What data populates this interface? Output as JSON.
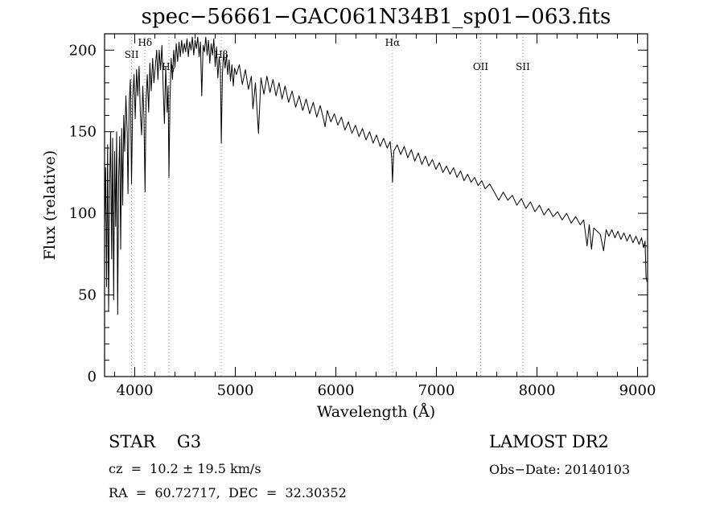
{
  "annotations": {
    "classification": "STAR    G3",
    "survey": "LAMOST DR2",
    "cz_line": "cz  =  10.2 ± 19.5 km/s",
    "obs_date": "Obs−Date: 20140103",
    "radec_line": "RA  =  60.72717,  DEC  =  32.30352"
  },
  "chart_data": {
    "type": "line",
    "title": "spec−56661−GAC061N34B1_sp01−063.fits",
    "xlabel": "Wavelength (Å)",
    "ylabel": "Flux (relative)",
    "xlim": [
      3700,
      9100
    ],
    "ylim": [
      0,
      210
    ],
    "x_ticks": [
      4000,
      5000,
      6000,
      7000,
      8000,
      9000
    ],
    "x_minor_step": 200,
    "y_ticks": [
      0,
      50,
      100,
      150,
      200
    ],
    "y_minor_step": 10,
    "grid": false,
    "legend": "none",
    "colors": {
      "trace": "#000000",
      "line_markers": "#999999"
    },
    "spectral_lines": [
      {
        "label": "SII",
        "wavelength": 3969,
        "row": 1
      },
      {
        "label": "Hδ",
        "wavelength": 4102,
        "row": 0
      },
      {
        "label": "Hγ",
        "wavelength": 4340,
        "row": 2
      },
      {
        "label": "Hβ",
        "wavelength": 4861,
        "row": 1
      },
      {
        "label": "Hα",
        "wavelength": 6563,
        "row": 0
      },
      {
        "label": "OII",
        "wavelength": 7440,
        "row": 2
      },
      {
        "label": "SII",
        "wavelength": 7860,
        "row": 2
      }
    ],
    "series": [
      {
        "name": "spectrum",
        "points": [
          [
            3700,
            92
          ],
          [
            3710,
            128
          ],
          [
            3720,
            55
          ],
          [
            3730,
            142
          ],
          [
            3740,
            40
          ],
          [
            3750,
            118
          ],
          [
            3760,
            150
          ],
          [
            3770,
            72
          ],
          [
            3780,
            146
          ],
          [
            3790,
            47
          ],
          [
            3800,
            138
          ],
          [
            3810,
            92
          ],
          [
            3820,
            150
          ],
          [
            3830,
            38
          ],
          [
            3840,
            122
          ],
          [
            3850,
            147
          ],
          [
            3860,
            78
          ],
          [
            3870,
            152
          ],
          [
            3880,
            105
          ],
          [
            3890,
            160
          ],
          [
            3900,
            138
          ],
          [
            3912,
            172
          ],
          [
            3925,
            150
          ],
          [
            3933,
            112
          ],
          [
            3945,
            168
          ],
          [
            3957,
            182
          ],
          [
            3968,
            118
          ],
          [
            3980,
            170
          ],
          [
            3993,
            185
          ],
          [
            4005,
            158
          ],
          [
            4018,
            188
          ],
          [
            4030,
            172
          ],
          [
            4043,
            190
          ],
          [
            4055,
            162
          ],
          [
            4068,
            148
          ],
          [
            4080,
            178
          ],
          [
            4092,
            158
          ],
          [
            4102,
            113
          ],
          [
            4112,
            168
          ],
          [
            4125,
            185
          ],
          [
            4138,
            162
          ],
          [
            4150,
            192
          ],
          [
            4163,
            175
          ],
          [
            4178,
            195
          ],
          [
            4190,
            180
          ],
          [
            4205,
            190
          ],
          [
            4218,
            200
          ],
          [
            4230,
            182
          ],
          [
            4243,
            200
          ],
          [
            4256,
            188
          ],
          [
            4270,
            203
          ],
          [
            4282,
            178
          ],
          [
            4295,
            155
          ],
          [
            4308,
            190
          ],
          [
            4322,
            162
          ],
          [
            4332,
            178
          ],
          [
            4340,
            122
          ],
          [
            4350,
            170
          ],
          [
            4362,
            195
          ],
          [
            4375,
            182
          ],
          [
            4388,
            200
          ],
          [
            4400,
            190
          ],
          [
            4413,
            204
          ],
          [
            4426,
            193
          ],
          [
            4440,
            205
          ],
          [
            4453,
            196
          ],
          [
            4466,
            206
          ],
          [
            4480,
            198
          ],
          [
            4493,
            204
          ],
          [
            4506,
            199
          ],
          [
            4520,
            207
          ],
          [
            4533,
            196
          ],
          [
            4546,
            205
          ],
          [
            4560,
            200
          ],
          [
            4573,
            208
          ],
          [
            4586,
            197
          ],
          [
            4600,
            206
          ],
          [
            4613,
            201
          ],
          [
            4626,
            208
          ],
          [
            4640,
            196
          ],
          [
            4653,
            205
          ],
          [
            4666,
            172
          ],
          [
            4680,
            203
          ],
          [
            4693,
            199
          ],
          [
            4706,
            208
          ],
          [
            4720,
            197
          ],
          [
            4733,
            206
          ],
          [
            4746,
            192
          ],
          [
            4760,
            204
          ],
          [
            4773,
            197
          ],
          [
            4786,
            207
          ],
          [
            4800,
            190
          ],
          [
            4813,
            202
          ],
          [
            4826,
            183
          ],
          [
            4840,
            196
          ],
          [
            4852,
            188
          ],
          [
            4861,
            143
          ],
          [
            4872,
            186
          ],
          [
            4885,
            199
          ],
          [
            4898,
            189
          ],
          [
            4912,
            197
          ],
          [
            4925,
            185
          ],
          [
            4938,
            194
          ],
          [
            4952,
            181
          ],
          [
            4966,
            191
          ],
          [
            4980,
            178
          ],
          [
            4993,
            189
          ],
          [
            5010,
            185
          ],
          [
            5040,
            191
          ],
          [
            5070,
            179
          ],
          [
            5100,
            188
          ],
          [
            5130,
            176
          ],
          [
            5160,
            184
          ],
          [
            5175,
            164
          ],
          [
            5200,
            180
          ],
          [
            5230,
            149
          ],
          [
            5255,
            183
          ],
          [
            5285,
            173
          ],
          [
            5315,
            184
          ],
          [
            5345,
            174
          ],
          [
            5375,
            182
          ],
          [
            5405,
            172
          ],
          [
            5435,
            180
          ],
          [
            5465,
            170
          ],
          [
            5495,
            178
          ],
          [
            5530,
            168
          ],
          [
            5565,
            175
          ],
          [
            5600,
            165
          ],
          [
            5635,
            172
          ],
          [
            5670,
            163
          ],
          [
            5705,
            170
          ],
          [
            5740,
            161
          ],
          [
            5775,
            168
          ],
          [
            5810,
            159
          ],
          [
            5845,
            166
          ],
          [
            5880,
            157
          ],
          [
            5893,
            153
          ],
          [
            5915,
            163
          ],
          [
            5950,
            156
          ],
          [
            5985,
            161
          ],
          [
            6020,
            154
          ],
          [
            6055,
            159
          ],
          [
            6090,
            151
          ],
          [
            6125,
            156
          ],
          [
            6160,
            149
          ],
          [
            6195,
            154
          ],
          [
            6230,
            147
          ],
          [
            6265,
            152
          ],
          [
            6300,
            145
          ],
          [
            6335,
            150
          ],
          [
            6370,
            143
          ],
          [
            6405,
            148
          ],
          [
            6440,
            141
          ],
          [
            6475,
            146
          ],
          [
            6510,
            140
          ],
          [
            6540,
            144
          ],
          [
            6555,
            134
          ],
          [
            6563,
            119
          ],
          [
            6575,
            138
          ],
          [
            6610,
            142
          ],
          [
            6645,
            136
          ],
          [
            6680,
            141
          ],
          [
            6715,
            134
          ],
          [
            6750,
            139
          ],
          [
            6785,
            132
          ],
          [
            6820,
            137
          ],
          [
            6855,
            130
          ],
          [
            6890,
            135
          ],
          [
            6925,
            129
          ],
          [
            6960,
            133
          ],
          [
            6995,
            127
          ],
          [
            7030,
            131
          ],
          [
            7065,
            125
          ],
          [
            7100,
            129
          ],
          [
            7135,
            124
          ],
          [
            7170,
            128
          ],
          [
            7205,
            122
          ],
          [
            7240,
            126
          ],
          [
            7275,
            120
          ],
          [
            7310,
            124
          ],
          [
            7345,
            119
          ],
          [
            7380,
            122
          ],
          [
            7415,
            117
          ],
          [
            7450,
            120
          ],
          [
            7485,
            115
          ],
          [
            7530,
            118
          ],
          [
            7575,
            113
          ],
          [
            7620,
            108
          ],
          [
            7665,
            113
          ],
          [
            7710,
            108
          ],
          [
            7755,
            111
          ],
          [
            7800,
            105
          ],
          [
            7845,
            109
          ],
          [
            7890,
            103
          ],
          [
            7935,
            107
          ],
          [
            7980,
            101
          ],
          [
            8025,
            105
          ],
          [
            8070,
            99
          ],
          [
            8115,
            103
          ],
          [
            8160,
            98
          ],
          [
            8205,
            101
          ],
          [
            8250,
            96
          ],
          [
            8295,
            100
          ],
          [
            8340,
            94
          ],
          [
            8385,
            98
          ],
          [
            8430,
            93
          ],
          [
            8465,
            96
          ],
          [
            8498,
            80
          ],
          [
            8520,
            93
          ],
          [
            8542,
            78
          ],
          [
            8565,
            91
          ],
          [
            8600,
            89
          ],
          [
            8630,
            87
          ],
          [
            8662,
            77
          ],
          [
            8688,
            90
          ],
          [
            8715,
            86
          ],
          [
            8745,
            90
          ],
          [
            8775,
            85
          ],
          [
            8805,
            89
          ],
          [
            8835,
            84
          ],
          [
            8865,
            88
          ],
          [
            8895,
            83
          ],
          [
            8925,
            87
          ],
          [
            8955,
            82
          ],
          [
            8985,
            86
          ],
          [
            9015,
            81
          ],
          [
            9040,
            85
          ],
          [
            9060,
            79
          ],
          [
            9075,
            83
          ],
          [
            9085,
            61
          ],
          [
            9095,
            58
          ]
        ]
      }
    ]
  }
}
